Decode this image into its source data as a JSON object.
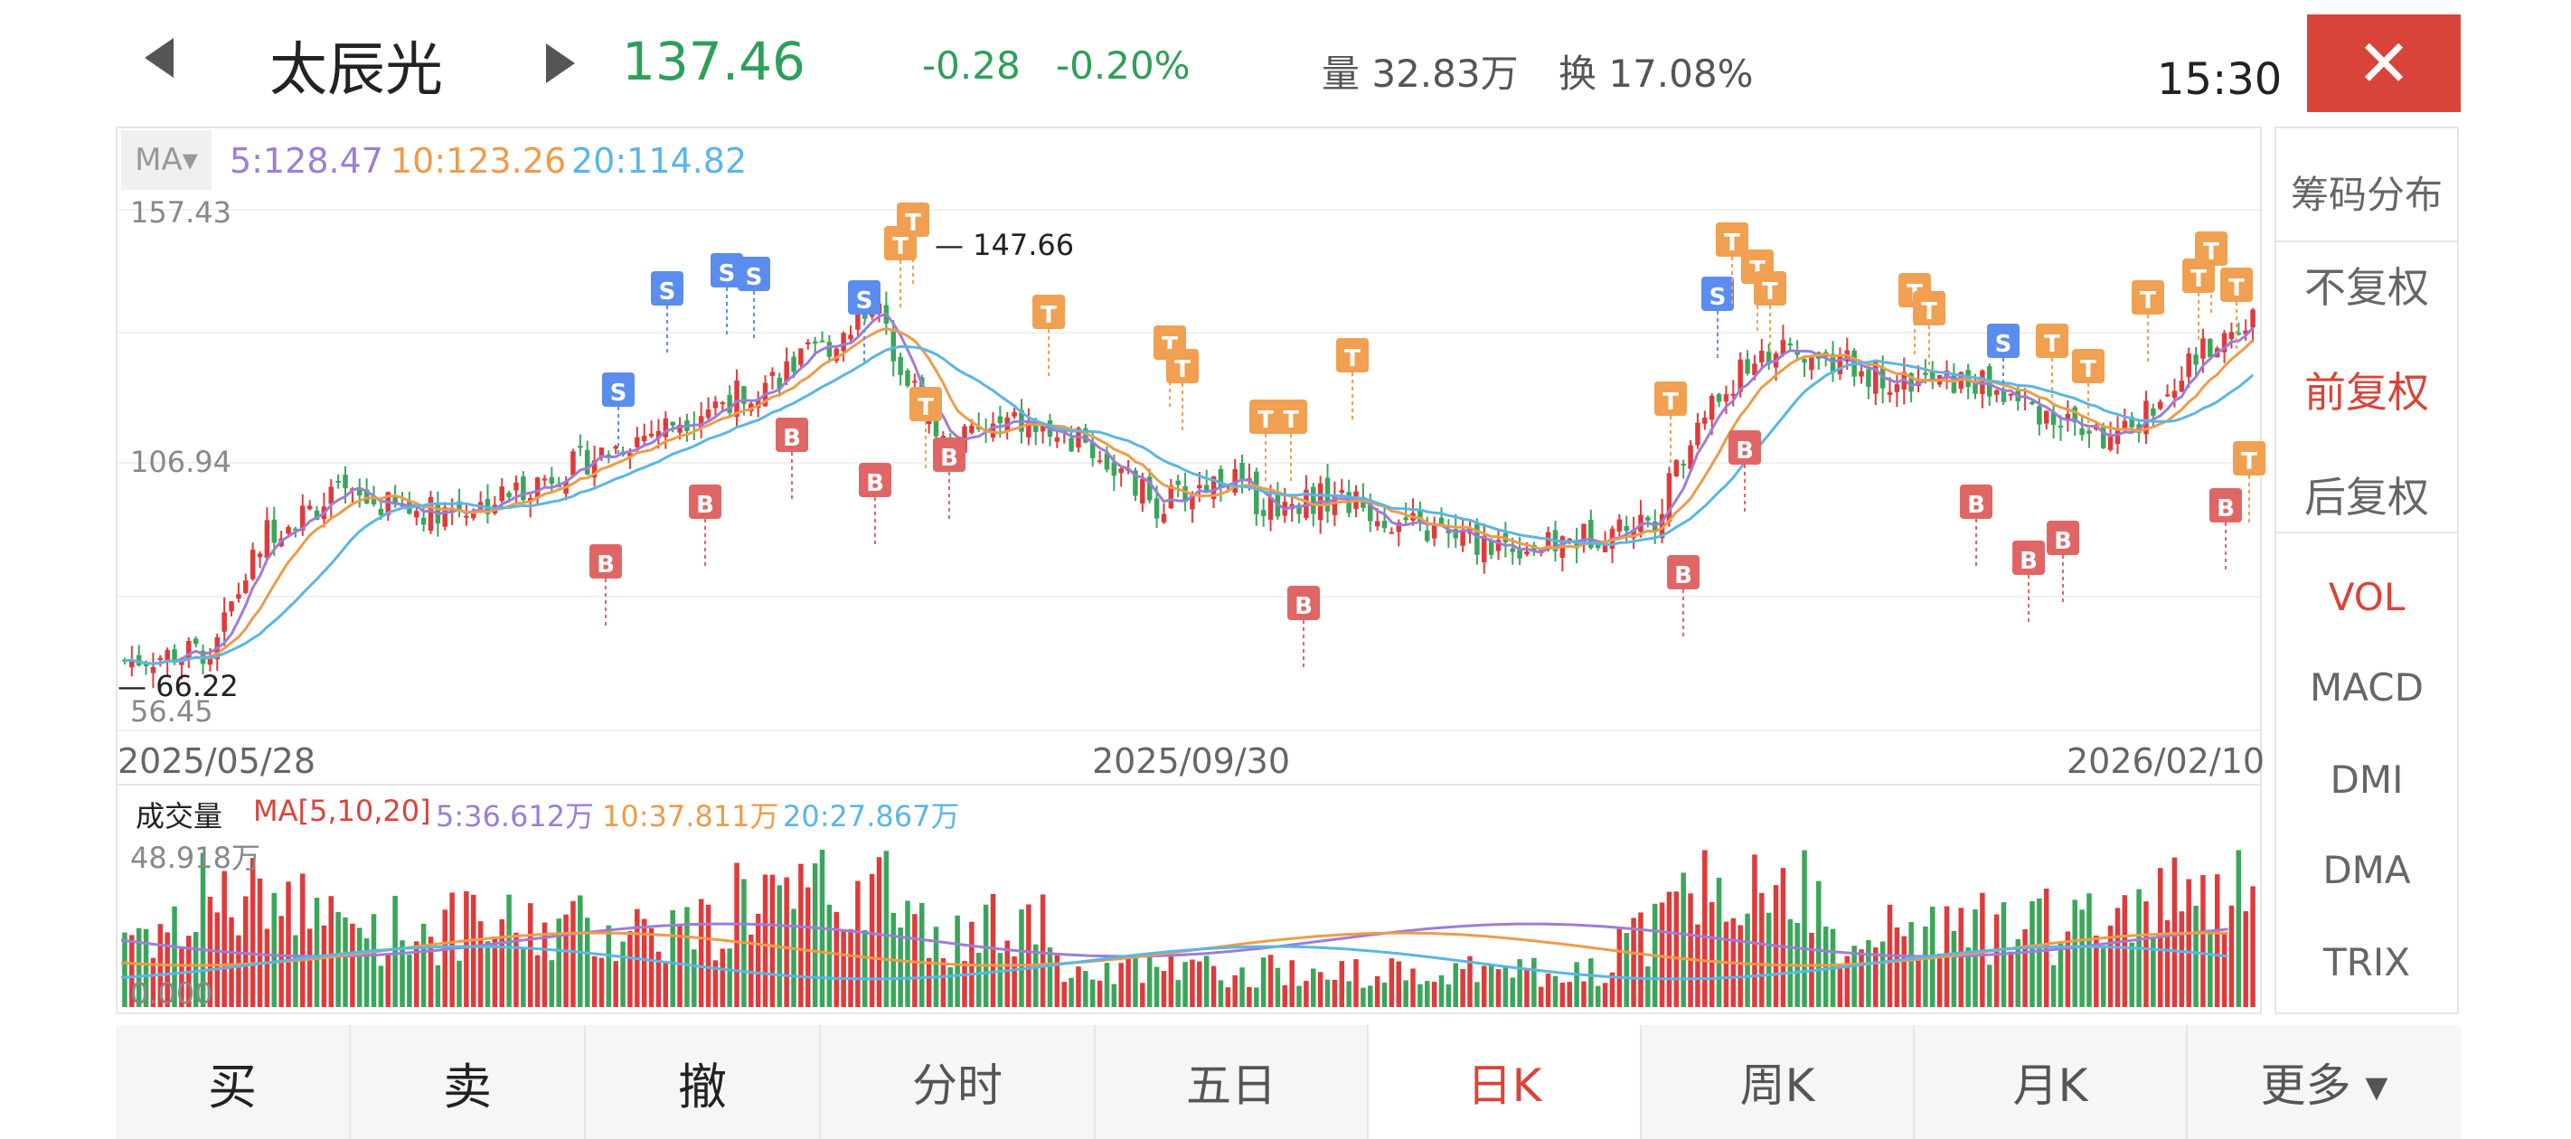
{
  "header": {
    "name": "太辰光",
    "price": "137.46",
    "change": "-0.28",
    "change_pct": "-0.20%",
    "volume": "量 32.83万",
    "turnover": "换 17.08%",
    "time": "15:30",
    "close_glyph": "✕"
  },
  "ma_legend": {
    "badge": "MA▾",
    "ma5": "5:128.47",
    "ma10": "10:123.26",
    "ma20": "20:114.82"
  },
  "axis": {
    "top": "157.43",
    "mid": "106.94",
    "bottom": "56.45",
    "max_marker": "— 147.66",
    "min_marker": "— 66.22"
  },
  "dates": [
    "2025/05/28",
    "2025/09/30",
    "2026/02/10"
  ],
  "volume_legend": {
    "label": "成交量",
    "ma": "MA[5,10,20]",
    "ma5": "5:36.612万",
    "ma10": "10:37.811万",
    "ma20": "20:27.867万",
    "top": "48.918万",
    "bottom": "0.000"
  },
  "sidebar": {
    "items": [
      {
        "label": "筹码分布"
      },
      {
        "label": "不复权"
      },
      {
        "label": "前复权",
        "active": true
      },
      {
        "label": "后复权"
      },
      {
        "label": "VOL",
        "active": true
      },
      {
        "label": "MACD"
      },
      {
        "label": "DMI"
      },
      {
        "label": "DMA"
      },
      {
        "label": "TRIX"
      }
    ]
  },
  "tabs": [
    {
      "label": "买"
    },
    {
      "label": "卖"
    },
    {
      "label": "撤"
    },
    {
      "label": "分时"
    },
    {
      "label": "五日"
    },
    {
      "label": "日K",
      "active": true
    },
    {
      "label": "周K"
    },
    {
      "label": "月K"
    },
    {
      "label": "更多 ▾"
    }
  ],
  "colors": {
    "up": "#e03a3a",
    "down": "#3aa65a",
    "ma5": "#9c7ed6",
    "ma10": "#ef9b4a",
    "ma20": "#5ab6e6",
    "accent": "#d9443a",
    "sell_marker": "#5b8def",
    "buy_marker": "#e06666",
    "t_marker": "#f0a050"
  }
}
